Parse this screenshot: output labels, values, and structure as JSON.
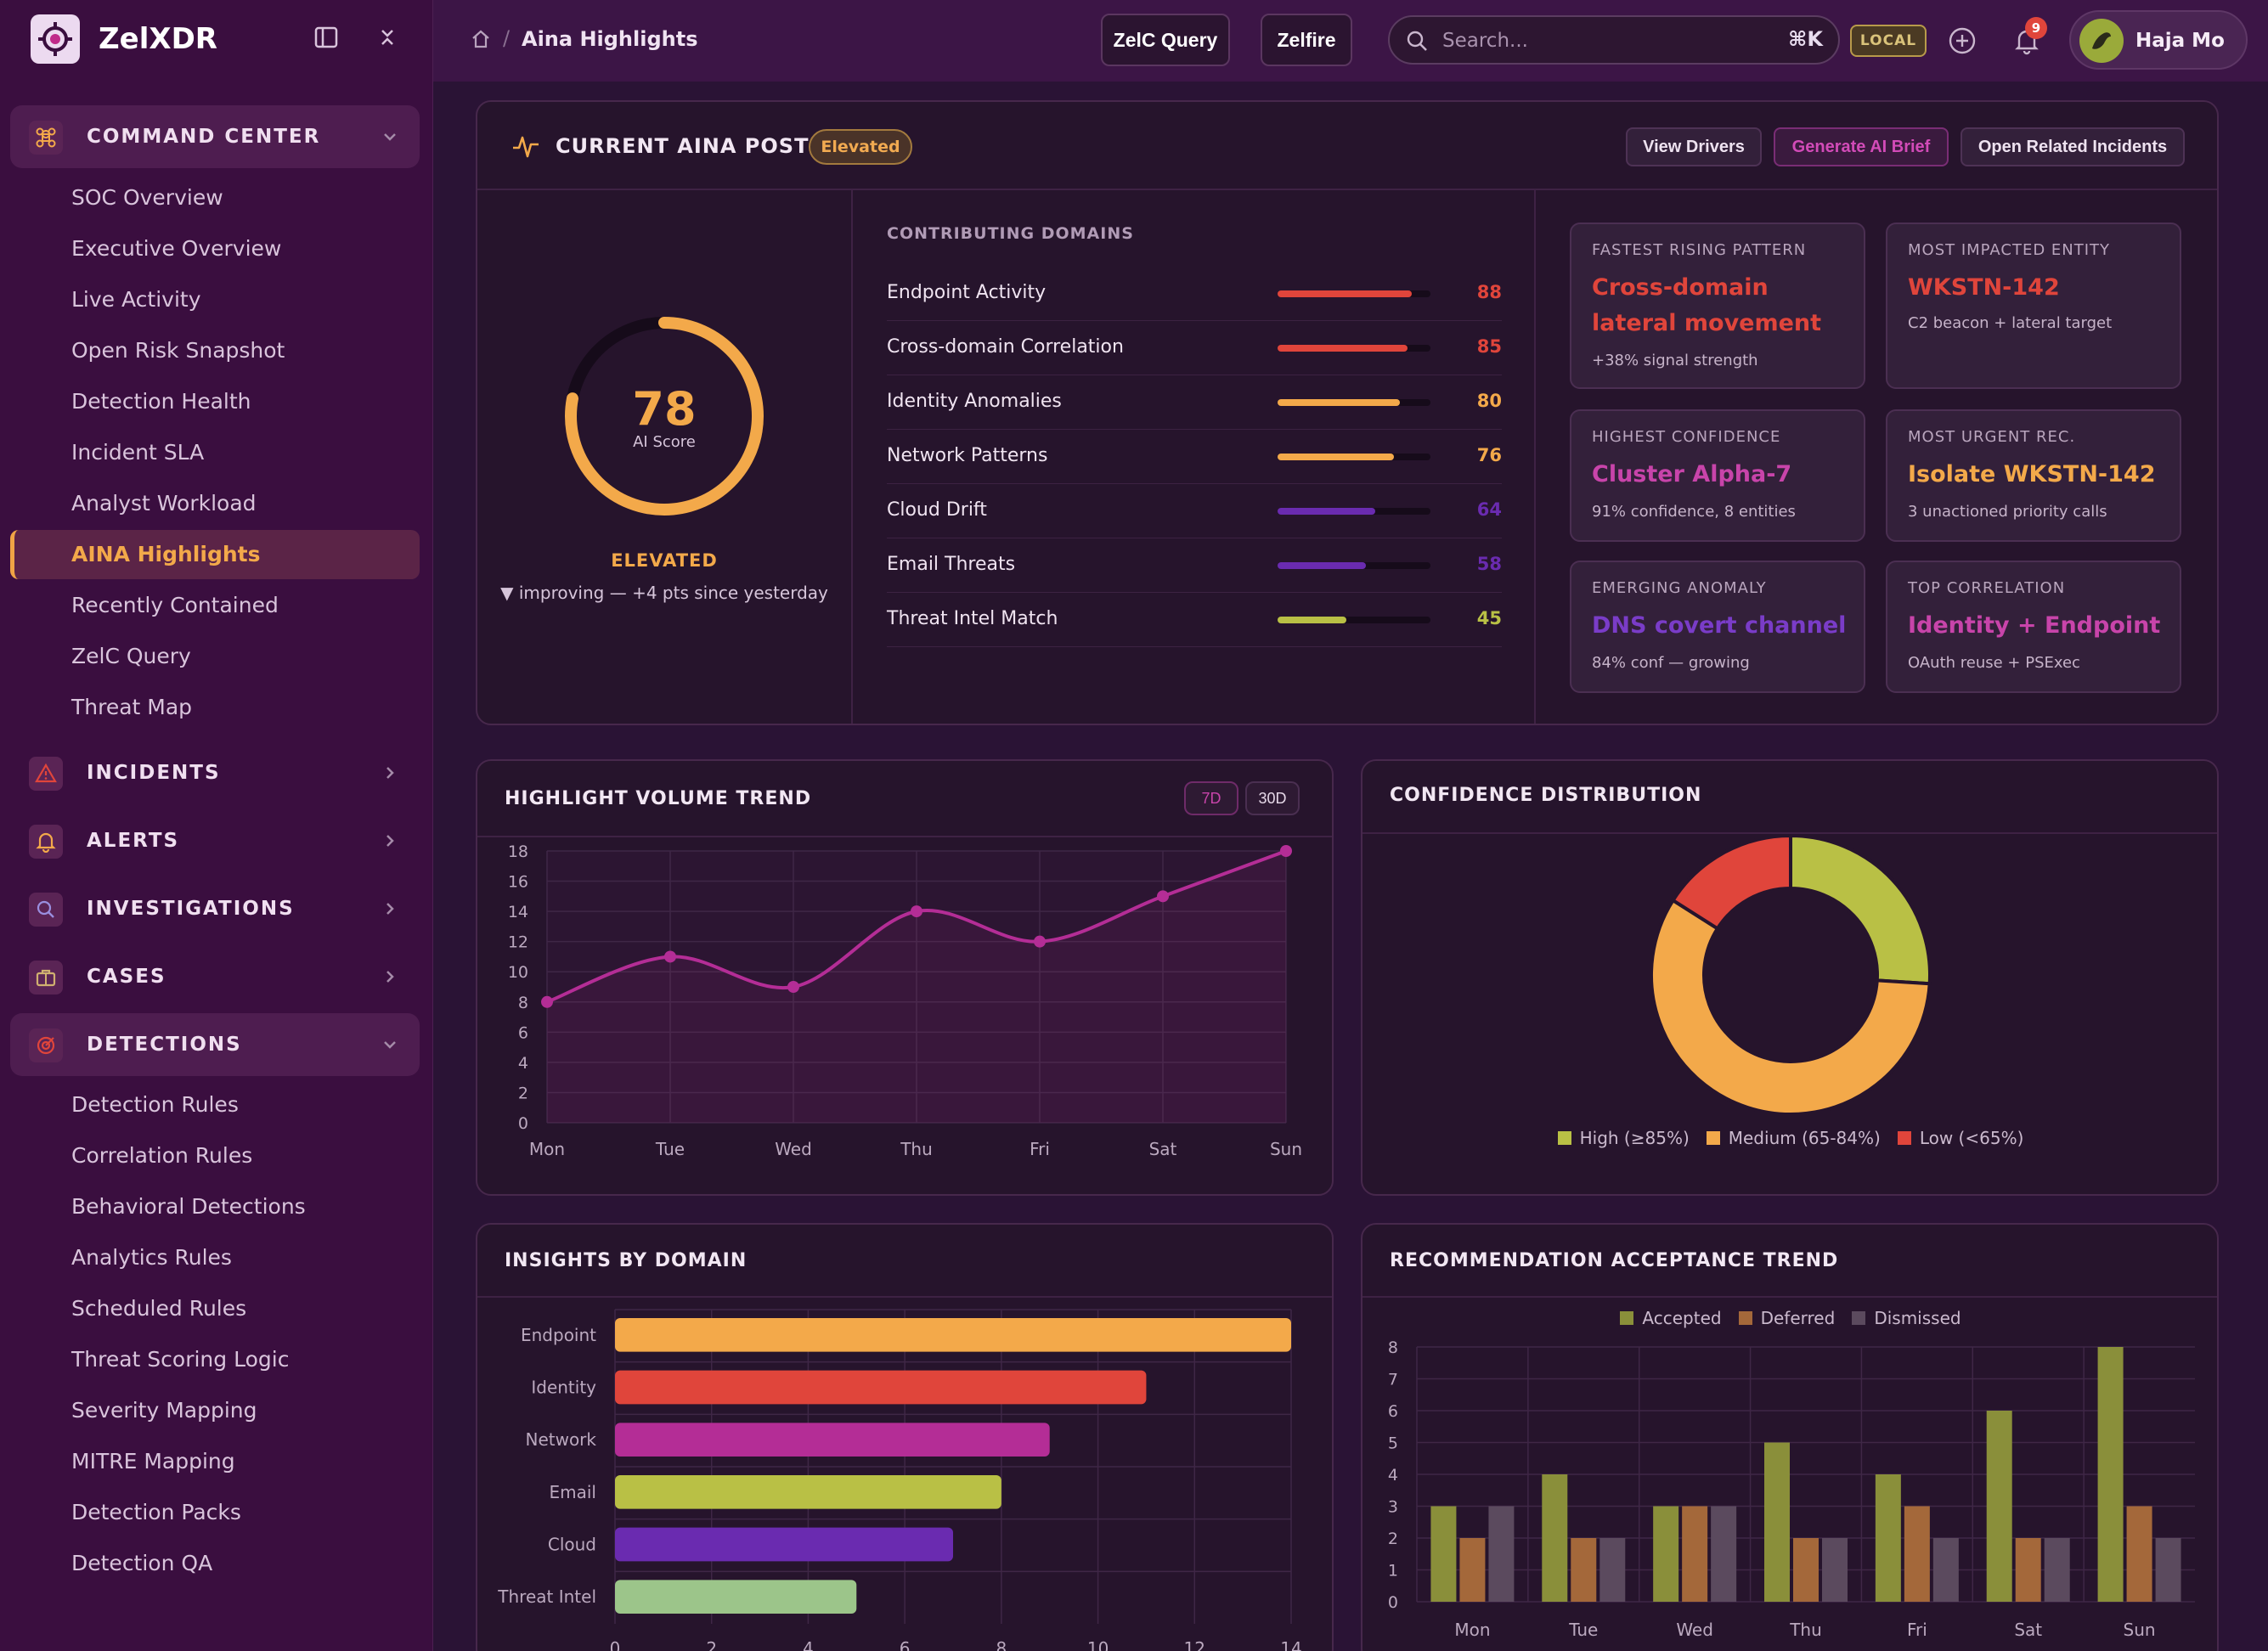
{
  "brand": {
    "name": "ZelXDR"
  },
  "sidebar": {
    "groups": [
      {
        "label": "COMMAND CENTER",
        "icon": "command-icon",
        "open": true,
        "items": [
          "SOC Overview",
          "Executive Overview",
          "Live Activity",
          "Open Risk Snapshot",
          "Detection Health",
          "Incident SLA",
          "Analyst Workload",
          "AINA Highlights",
          "Recently Contained",
          "ZelC Query",
          "Threat Map"
        ],
        "active": "AINA Highlights"
      },
      {
        "label": "INCIDENTS",
        "icon": "warning-triangle-icon",
        "open": false
      },
      {
        "label": "ALERTS",
        "icon": "bell-icon",
        "open": false
      },
      {
        "label": "INVESTIGATIONS",
        "icon": "magnifier-icon",
        "open": false
      },
      {
        "label": "CASES",
        "icon": "briefcase-icon",
        "open": false
      },
      {
        "label": "DETECTIONS",
        "icon": "target-icon",
        "open": true,
        "items": [
          "Detection Rules",
          "Correlation Rules",
          "Behavioral Detections",
          "Analytics Rules",
          "Scheduled Rules",
          "Threat Scoring Logic",
          "Severity Mapping",
          "MITRE Mapping",
          "Detection Packs",
          "Detection QA"
        ]
      }
    ]
  },
  "header": {
    "breadcrumb_current": "Aina Highlights",
    "breadcrumb_sep": "/",
    "buttons": [
      "ZelC Query",
      "Zelfire"
    ],
    "search": {
      "placeholder": "Search...",
      "shortcut": "⌘K"
    },
    "env_badge": "LOCAL",
    "notification_count": "9",
    "user": {
      "name": "Haja Mo"
    }
  },
  "posture": {
    "title": "CURRENT AINA POSTURE",
    "status_pill": "Elevated",
    "actions": [
      "View Drivers",
      "Generate AI Brief",
      "Open Related Incidents"
    ],
    "score": "78",
    "score_label": "AI Score",
    "score_fraction": 0.78,
    "level": "ELEVATED",
    "trend_text": "▼ improving — +4 pts since yesterday",
    "domains_title": "CONTRIBUTING DOMAINS",
    "domains": [
      {
        "name": "Endpoint Activity",
        "value": "88",
        "color": "#e0453b"
      },
      {
        "name": "Cross-domain Correlation",
        "value": "85",
        "color": "#e0453b"
      },
      {
        "name": "Identity Anomalies",
        "value": "80",
        "color": "#f3a94a"
      },
      {
        "name": "Network Patterns",
        "value": "76",
        "color": "#f3a94a"
      },
      {
        "name": "Cloud Drift",
        "value": "64",
        "color": "#6a2bb0"
      },
      {
        "name": "Email Threats",
        "value": "58",
        "color": "#6a2bb0"
      },
      {
        "name": "Threat Intel Match",
        "value": "45",
        "color": "#b9c045"
      }
    ],
    "insights": [
      {
        "label": "FASTEST RISING PATTERN",
        "value": "Cross-domain lateral movement",
        "sub": "+38% signal strength",
        "color": "#e0453b"
      },
      {
        "label": "MOST IMPACTED ENTITY",
        "value": "WKSTN-142",
        "sub": "C2 beacon + lateral target",
        "color": "#e0453b"
      },
      {
        "label": "HIGHEST CONFIDENCE",
        "value": "Cluster Alpha-7",
        "sub": "91% confidence, 8 entities",
        "color": "#c844aa"
      },
      {
        "label": "MOST URGENT REC.",
        "value": "Isolate WKSTN-142",
        "sub": "3 unactioned priority calls",
        "color": "#f3a94a"
      },
      {
        "label": "EMERGING ANOMALY",
        "value": "DNS covert channel",
        "sub": "84% conf — growing",
        "color": "#7a3cc8"
      },
      {
        "label": "TOP CORRELATION",
        "value": "Identity + Endpoint",
        "sub": "OAuth reuse + PSExec",
        "color": "#c844aa"
      }
    ]
  },
  "trend_panel": {
    "title": "HIGHLIGHT VOLUME TREND",
    "ranges": [
      "7D",
      "30D"
    ],
    "active_range": "7D"
  },
  "confidence_panel": {
    "title": "CONFIDENCE DISTRIBUTION"
  },
  "domain_panel": {
    "title": "INSIGHTS BY DOMAIN"
  },
  "rec_panel": {
    "title": "RECOMMENDATION ACCEPTANCE TREND"
  },
  "chart_data": [
    {
      "type": "line",
      "title": "HIGHLIGHT VOLUME TREND",
      "categories": [
        "Mon",
        "Tue",
        "Wed",
        "Thu",
        "Fri",
        "Sat",
        "Sun"
      ],
      "values": [
        8,
        11,
        9,
        14,
        12,
        15,
        18
      ],
      "ylim": [
        0,
        18
      ],
      "yticks": [
        0,
        2,
        4,
        6,
        8,
        10,
        12,
        14,
        16,
        18
      ],
      "color": "#b42d96",
      "grid": true
    },
    {
      "type": "pie",
      "title": "CONFIDENCE DISTRIBUTION",
      "donut": true,
      "slices": [
        {
          "name": "High (≥85%)",
          "value": 26,
          "color": "#b9c045"
        },
        {
          "name": "Medium (65-84%)",
          "value": 58,
          "color": "#f3a94a"
        },
        {
          "name": "Low (<65%)",
          "value": 16,
          "color": "#e0453b"
        }
      ],
      "legend": "bottom"
    },
    {
      "type": "bar",
      "orientation": "horizontal",
      "title": "INSIGHTS BY DOMAIN",
      "categories": [
        "Endpoint",
        "Identity",
        "Network",
        "Email",
        "Cloud",
        "Threat Intel"
      ],
      "values": [
        14,
        11,
        9,
        8,
        7,
        5
      ],
      "colors": [
        "#f3a94a",
        "#e0453b",
        "#b42d96",
        "#b9c045",
        "#6a2bb0",
        "#9cc58a"
      ],
      "xlim": [
        0,
        14
      ],
      "xticks": [
        0,
        2,
        4,
        6,
        8,
        10,
        12,
        14
      ],
      "grid": true
    },
    {
      "type": "bar",
      "title": "RECOMMENDATION ACCEPTANCE TREND",
      "categories": [
        "Mon",
        "Tue",
        "Wed",
        "Thu",
        "Fri",
        "Sat",
        "Sun"
      ],
      "series": [
        {
          "name": "Accepted",
          "values": [
            3,
            4,
            3,
            5,
            4,
            6,
            8
          ],
          "color": "#8a8f3a"
        },
        {
          "name": "Deferred",
          "values": [
            2,
            2,
            3,
            2,
            3,
            2,
            3
          ],
          "color": "#a4683a"
        },
        {
          "name": "Dismissed",
          "values": [
            3,
            2,
            3,
            2,
            2,
            2,
            2
          ],
          "color": "#5b4a5e"
        }
      ],
      "ylim": [
        0,
        8
      ],
      "yticks": [
        0,
        1,
        2,
        3,
        4,
        5,
        6,
        7,
        8
      ],
      "legend": "top",
      "grid": true
    }
  ]
}
